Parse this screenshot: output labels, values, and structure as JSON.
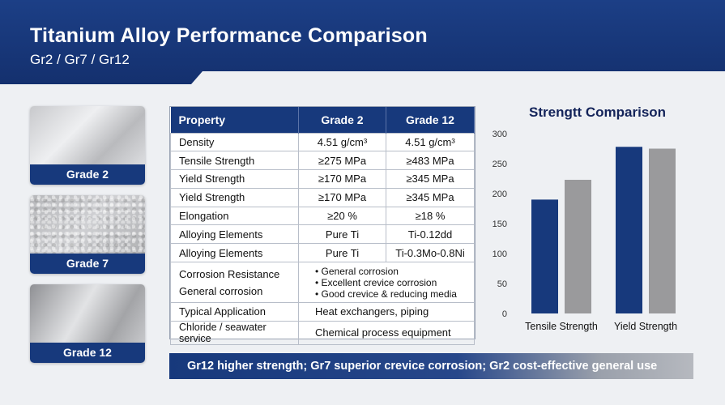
{
  "header": {
    "title": "Titanium Alloy Performance Comparison",
    "subtitle": "Gr2 / Gr7 / Gr12"
  },
  "cards": [
    {
      "label": "Grade 2",
      "texture": "brushed-metal"
    },
    {
      "label": "Grade 7",
      "texture": "speckled-metal"
    },
    {
      "label": "Grade 12",
      "texture": "polished-metal"
    }
  ],
  "table": {
    "headers": [
      "Property",
      "Grade 2",
      "Grade 12"
    ],
    "rows": [
      {
        "property": "Density",
        "grade2": "4.51 g/cm³",
        "grade12": "4.51 g/cm³"
      },
      {
        "property": "Tensile Strength",
        "grade2": "≥275 MPa",
        "grade12": "≥483 MPa"
      },
      {
        "property": "Yield Strength",
        "grade2": "≥170 MPa",
        "grade12": "≥345 MPa"
      },
      {
        "property": "Yield Strength",
        "grade2": "≥170 MPa",
        "grade12": "≥345 MPa"
      },
      {
        "property": "Elongation",
        "grade2": "≥20 %",
        "grade12": "≥18 %"
      },
      {
        "property": "Alloying Elements",
        "grade2": "Pure Ti",
        "grade12": "Ti-0.12dd"
      },
      {
        "property": "Alloying Elements",
        "grade2": "Pure Ti",
        "grade12": "Ti-0.3Mo-0.8Ni"
      }
    ],
    "corrosion": {
      "property_lines": [
        "Corrosion Resistance",
        "General corrosion"
      ],
      "bullets": [
        "General corrosion",
        "Excellent crevice corrosion",
        "Good crevice & reducing media"
      ]
    },
    "application_rows": [
      {
        "property": "Typical Application",
        "value": "Heat exchangers, piping"
      },
      {
        "property": "Chloride / seawater service",
        "value": "Chemical process equipment"
      }
    ]
  },
  "chart_data": {
    "type": "bar",
    "title": "Strengtt  Comparison",
    "categories": [
      "Tensile Strength",
      "Yield Strength"
    ],
    "series": [
      {
        "values": [
          190,
          278
        ]
      },
      {
        "values": [
          223,
          275
        ]
      }
    ],
    "series_colors": [
      "#17397c",
      "#9a9a9c"
    ],
    "yticks": [
      0,
      50,
      100,
      150,
      200,
      250,
      300
    ],
    "ylim": [
      0,
      300
    ],
    "grid": false,
    "legend": "none"
  },
  "summary": {
    "text": "Gr12 higher strength; Gr7 superior crevice corrosion; Gr2 cost-effective general use"
  },
  "colors": {
    "brand_navy": "#17397c",
    "header_blue": "#1c3f86",
    "bar_gray": "#9a9a9c",
    "background": "#eef0f3"
  }
}
